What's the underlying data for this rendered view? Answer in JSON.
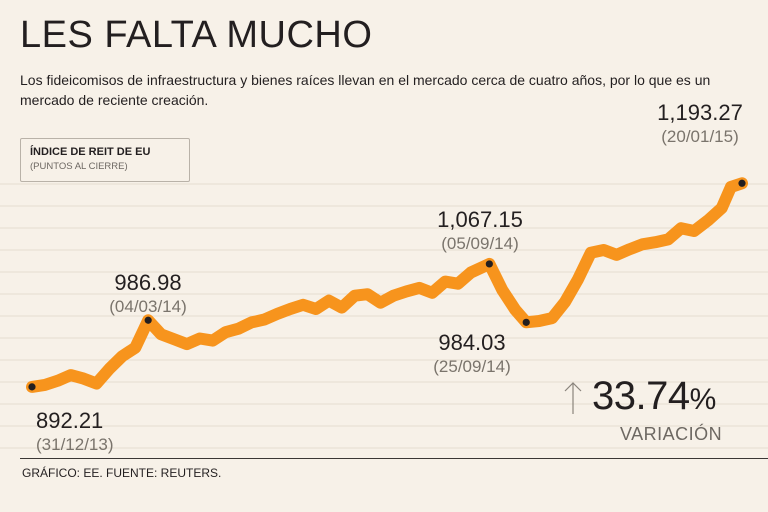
{
  "header": {
    "title": "LES FALTA MUCHO",
    "subtitle": "Los fideicomisos de infraestructura y bienes raíces llevan en el mercado cerca de cuatro años, por lo que es un mercado de reciente creación."
  },
  "legend": {
    "title": "ÍNDICE DE REIT DE EU",
    "subtitle": "(PUNTOS AL CIERRE)"
  },
  "variation": {
    "value": "33.74",
    "unit": "%",
    "label": "VARIACIÓN"
  },
  "footer": {
    "source": "GRÁFICO: EE. FUENTE: REUTERS."
  },
  "colors": {
    "line": "#f7941d",
    "background": "#f7f1e8",
    "grid": "#e6ddd0",
    "marker": "#231f20"
  },
  "chart_data": {
    "type": "line",
    "x_range": [
      "2013-12-31",
      "2015-01-20"
    ],
    "y_range": [
      865,
      1215
    ],
    "grid": true,
    "series": [
      {
        "points": [
          [
            "2013-12-31",
            892.21
          ],
          [
            "2014-01-07",
            895
          ],
          [
            "2014-01-14",
            901
          ],
          [
            "2014-01-21",
            909
          ],
          [
            "2014-01-28",
            904
          ],
          [
            "2014-02-04",
            897
          ],
          [
            "2014-02-11",
            918
          ],
          [
            "2014-02-18",
            936
          ],
          [
            "2014-02-25",
            948
          ],
          [
            "2014-03-04",
            986.98
          ],
          [
            "2014-03-11",
            967
          ],
          [
            "2014-03-18",
            960
          ],
          [
            "2014-03-25",
            953
          ],
          [
            "2014-04-01",
            961
          ],
          [
            "2014-04-08",
            958
          ],
          [
            "2014-04-15",
            970
          ],
          [
            "2014-04-22",
            975
          ],
          [
            "2014-04-29",
            984
          ],
          [
            "2014-05-06",
            988
          ],
          [
            "2014-05-13",
            996
          ],
          [
            "2014-05-20",
            1003
          ],
          [
            "2014-05-27",
            1009
          ],
          [
            "2014-06-03",
            1003
          ],
          [
            "2014-06-10",
            1015
          ],
          [
            "2014-06-17",
            1005
          ],
          [
            "2014-06-24",
            1022
          ],
          [
            "2014-07-01",
            1024
          ],
          [
            "2014-07-08",
            1012
          ],
          [
            "2014-07-15",
            1022
          ],
          [
            "2014-07-22",
            1028
          ],
          [
            "2014-07-29",
            1033
          ],
          [
            "2014-08-05",
            1026
          ],
          [
            "2014-08-12",
            1042
          ],
          [
            "2014-08-19",
            1039
          ],
          [
            "2014-08-26",
            1055
          ],
          [
            "2014-09-05",
            1067.15
          ],
          [
            "2014-09-12",
            1030
          ],
          [
            "2014-09-19",
            1002
          ],
          [
            "2014-09-25",
            984.03
          ],
          [
            "2014-10-02",
            986
          ],
          [
            "2014-10-09",
            990
          ],
          [
            "2014-10-16",
            1013
          ],
          [
            "2014-10-23",
            1045
          ],
          [
            "2014-10-30",
            1083
          ],
          [
            "2014-11-06",
            1087
          ],
          [
            "2014-11-13",
            1080
          ],
          [
            "2014-11-20",
            1088
          ],
          [
            "2014-11-27",
            1095
          ],
          [
            "2014-12-04",
            1098
          ],
          [
            "2014-12-11",
            1102
          ],
          [
            "2014-12-18",
            1118
          ],
          [
            "2014-12-25",
            1114
          ],
          [
            "2015-01-02",
            1130
          ],
          [
            "2015-01-09",
            1158
          ],
          [
            "2015-01-14",
            1188
          ],
          [
            "2015-01-20",
            1193.27
          ]
        ]
      }
    ],
    "annotations": [
      {
        "value": "892.21",
        "date": "(31/12/13)"
      },
      {
        "value": "986.98",
        "date": "(04/03/14)"
      },
      {
        "value": "1,067.15",
        "date": "(05/09/14)"
      },
      {
        "value": "984.03",
        "date": "(25/09/14)"
      },
      {
        "value": "1,193.27",
        "date": "(20/01/15)"
      }
    ]
  }
}
